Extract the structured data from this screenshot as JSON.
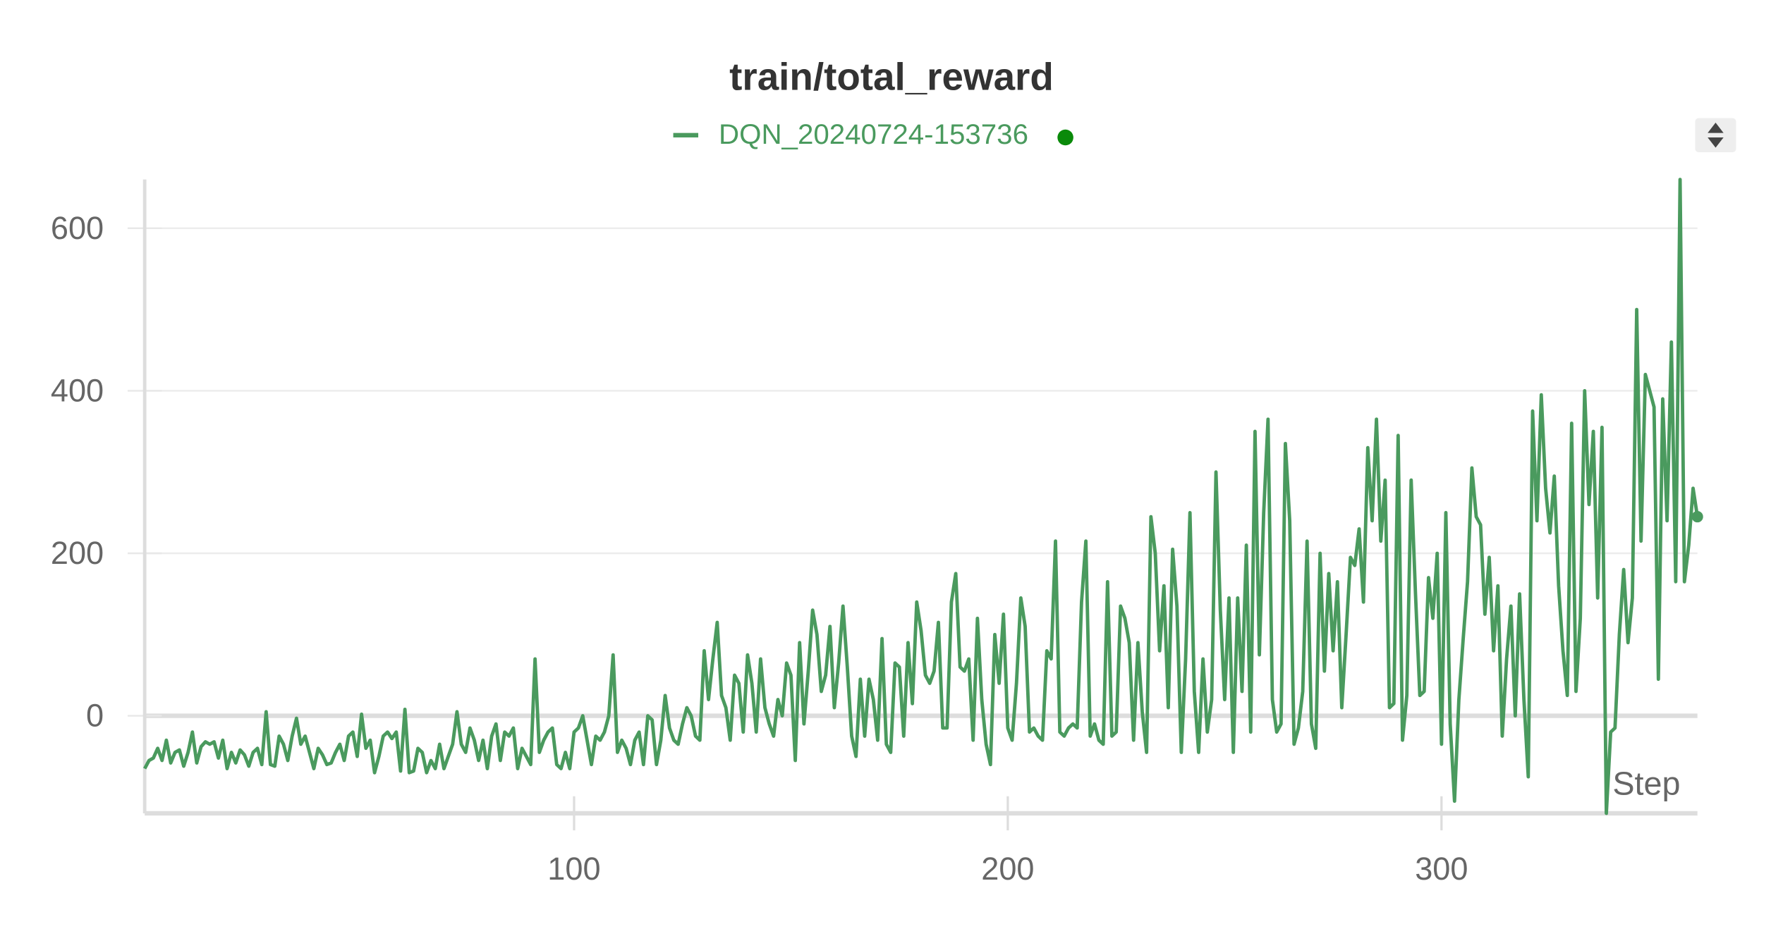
{
  "chart_data": {
    "type": "line",
    "title": "train/total_reward",
    "xlabel": "Step",
    "x": [
      1,
      2,
      3,
      4,
      5,
      6,
      7,
      8,
      9,
      10,
      11,
      12,
      13,
      14,
      15,
      16,
      17,
      18,
      19,
      20,
      21,
      22,
      23,
      24,
      25,
      26,
      27,
      28,
      29,
      30,
      31,
      32,
      33,
      34,
      35,
      36,
      37,
      38,
      39,
      40,
      41,
      42,
      43,
      44,
      45,
      46,
      47,
      48,
      49,
      50,
      51,
      52,
      53,
      54,
      55,
      56,
      57,
      58,
      59,
      60,
      61,
      62,
      63,
      64,
      65,
      66,
      67,
      68,
      69,
      70,
      71,
      72,
      73,
      74,
      75,
      76,
      77,
      78,
      79,
      80,
      81,
      82,
      83,
      84,
      85,
      86,
      87,
      88,
      89,
      90,
      91,
      92,
      93,
      94,
      95,
      96,
      97,
      98,
      99,
      100,
      101,
      102,
      103,
      104,
      105,
      106,
      107,
      108,
      109,
      110,
      111,
      112,
      113,
      114,
      115,
      116,
      117,
      118,
      119,
      120,
      121,
      122,
      123,
      124,
      125,
      126,
      127,
      128,
      129,
      130,
      131,
      132,
      133,
      134,
      135,
      136,
      137,
      138,
      139,
      140,
      141,
      142,
      143,
      144,
      145,
      146,
      147,
      148,
      149,
      150,
      151,
      152,
      153,
      154,
      155,
      156,
      157,
      158,
      159,
      160,
      161,
      162,
      163,
      164,
      165,
      166,
      167,
      168,
      169,
      170,
      171,
      172,
      173,
      174,
      175,
      176,
      177,
      178,
      179,
      180,
      181,
      182,
      183,
      184,
      185,
      186,
      187,
      188,
      189,
      190,
      191,
      192,
      193,
      194,
      195,
      196,
      197,
      198,
      199,
      200,
      201,
      202,
      203,
      204,
      205,
      206,
      207,
      208,
      209,
      210,
      211,
      212,
      213,
      214,
      215,
      216,
      217,
      218,
      219,
      220,
      221,
      222,
      223,
      224,
      225,
      226,
      227,
      228,
      229,
      230,
      231,
      232,
      233,
      234,
      235,
      236,
      237,
      238,
      239,
      240,
      241,
      242,
      243,
      244,
      245,
      246,
      247,
      248,
      249,
      250,
      251,
      252,
      253,
      254,
      255,
      256,
      257,
      258,
      259,
      260,
      261,
      262,
      263,
      264,
      265,
      266,
      267,
      268,
      269,
      270,
      271,
      272,
      273,
      274,
      275,
      276,
      277,
      278,
      279,
      280,
      281,
      282,
      283,
      284,
      285,
      286,
      287,
      288,
      289,
      290,
      291,
      292,
      293,
      294,
      295,
      296,
      297,
      298,
      299,
      300,
      301,
      302,
      303,
      304,
      305,
      306,
      307,
      308,
      309,
      310,
      311,
      312,
      313,
      314,
      315,
      316,
      317,
      318,
      319,
      320,
      321,
      322,
      323,
      324,
      325,
      326,
      327,
      328,
      329,
      330,
      331,
      332,
      333,
      334,
      335,
      336,
      337,
      338,
      339,
      340,
      341,
      342,
      343,
      344,
      345,
      346,
      347,
      348,
      349,
      350,
      351,
      352,
      353,
      354,
      355,
      356,
      357,
      358,
      359
    ],
    "series": [
      {
        "name": "DQN_20240724-153736",
        "color": "#4a9a5e",
        "values": [
          -65,
          -55,
          -52,
          -40,
          -55,
          -30,
          -58,
          -45,
          -42,
          -62,
          -45,
          -20,
          -58,
          -38,
          -32,
          -35,
          -32,
          -52,
          -30,
          -65,
          -45,
          -58,
          -42,
          -48,
          -62,
          -45,
          -40,
          -60,
          5,
          -60,
          -62,
          -25,
          -35,
          -55,
          -25,
          -3,
          -35,
          -25,
          -45,
          -65,
          -40,
          -48,
          -60,
          -58,
          -45,
          -35,
          -55,
          -25,
          -20,
          -50,
          2,
          -40,
          -30,
          -70,
          -50,
          -25,
          -20,
          -28,
          -20,
          -68,
          8,
          -70,
          -68,
          -40,
          -45,
          -70,
          -55,
          -65,
          -35,
          -65,
          -50,
          -35,
          5,
          -35,
          -45,
          -15,
          -30,
          -55,
          -30,
          -65,
          -25,
          -10,
          -55,
          -20,
          -25,
          -15,
          -65,
          -40,
          -50,
          -60,
          70,
          -45,
          -30,
          -20,
          -15,
          -60,
          -65,
          -45,
          -65,
          -20,
          -15,
          0,
          -30,
          -60,
          -25,
          -30,
          -20,
          0,
          75,
          -45,
          -30,
          -40,
          -60,
          -30,
          -20,
          -60,
          0,
          -5,
          -60,
          -30,
          25,
          -15,
          -30,
          -35,
          -10,
          10,
          0,
          -25,
          -30,
          80,
          20,
          70,
          115,
          25,
          10,
          -30,
          50,
          40,
          -20,
          75,
          40,
          -20,
          70,
          10,
          -10,
          -25,
          20,
          0,
          65,
          50,
          -55,
          90,
          -10,
          55,
          130,
          100,
          30,
          50,
          110,
          10,
          65,
          135,
          60,
          -25,
          -50,
          45,
          -25,
          45,
          20,
          -30,
          95,
          -35,
          -45,
          65,
          60,
          -25,
          90,
          15,
          140,
          105,
          50,
          40,
          55,
          115,
          -15,
          -15,
          140,
          175,
          60,
          55,
          70,
          -30,
          120,
          20,
          -35,
          -60,
          100,
          40,
          125,
          -15,
          -30,
          40,
          145,
          110,
          -20,
          -15,
          -25,
          -30,
          80,
          70,
          215,
          -20,
          -25,
          -15,
          -10,
          -15,
          140,
          215,
          -25,
          -10,
          -30,
          -35,
          165,
          -25,
          -20,
          135,
          120,
          90,
          -30,
          90,
          5,
          -45,
          245,
          200,
          80,
          160,
          10,
          205,
          135,
          -45,
          70,
          250,
          30,
          -45,
          70,
          -20,
          20,
          300,
          130,
          20,
          145,
          -45,
          145,
          30,
          210,
          -20,
          350,
          75,
          250,
          365,
          20,
          -20,
          -10,
          335,
          240,
          -35,
          -15,
          30,
          215,
          -10,
          -40,
          200,
          55,
          175,
          80,
          165,
          10,
          100,
          195,
          185,
          230,
          140,
          330,
          240,
          365,
          215,
          290,
          10,
          15,
          345,
          -30,
          25,
          290,
          150,
          25,
          30,
          170,
          120,
          200,
          -35,
          250,
          -10,
          -105,
          20,
          95,
          165,
          305,
          245,
          235,
          125,
          195,
          80,
          160,
          -25,
          70,
          135,
          0,
          150,
          20,
          -75,
          375,
          240,
          395,
          280,
          225,
          295,
          160,
          80,
          25,
          360,
          30,
          120,
          400,
          260,
          350,
          145,
          355,
          -120,
          -20,
          -15,
          100,
          180,
          90,
          145,
          500,
          215,
          420,
          400,
          380,
          45,
          390,
          240,
          460,
          165,
          660,
          165,
          210,
          280,
          245
        ]
      }
    ],
    "xlim": [
      1,
      359
    ],
    "xticks": [
      100,
      200,
      300
    ],
    "ylim": [
      -120,
      660
    ],
    "yticks": [
      0,
      200,
      400,
      600
    ],
    "grid": true
  }
}
